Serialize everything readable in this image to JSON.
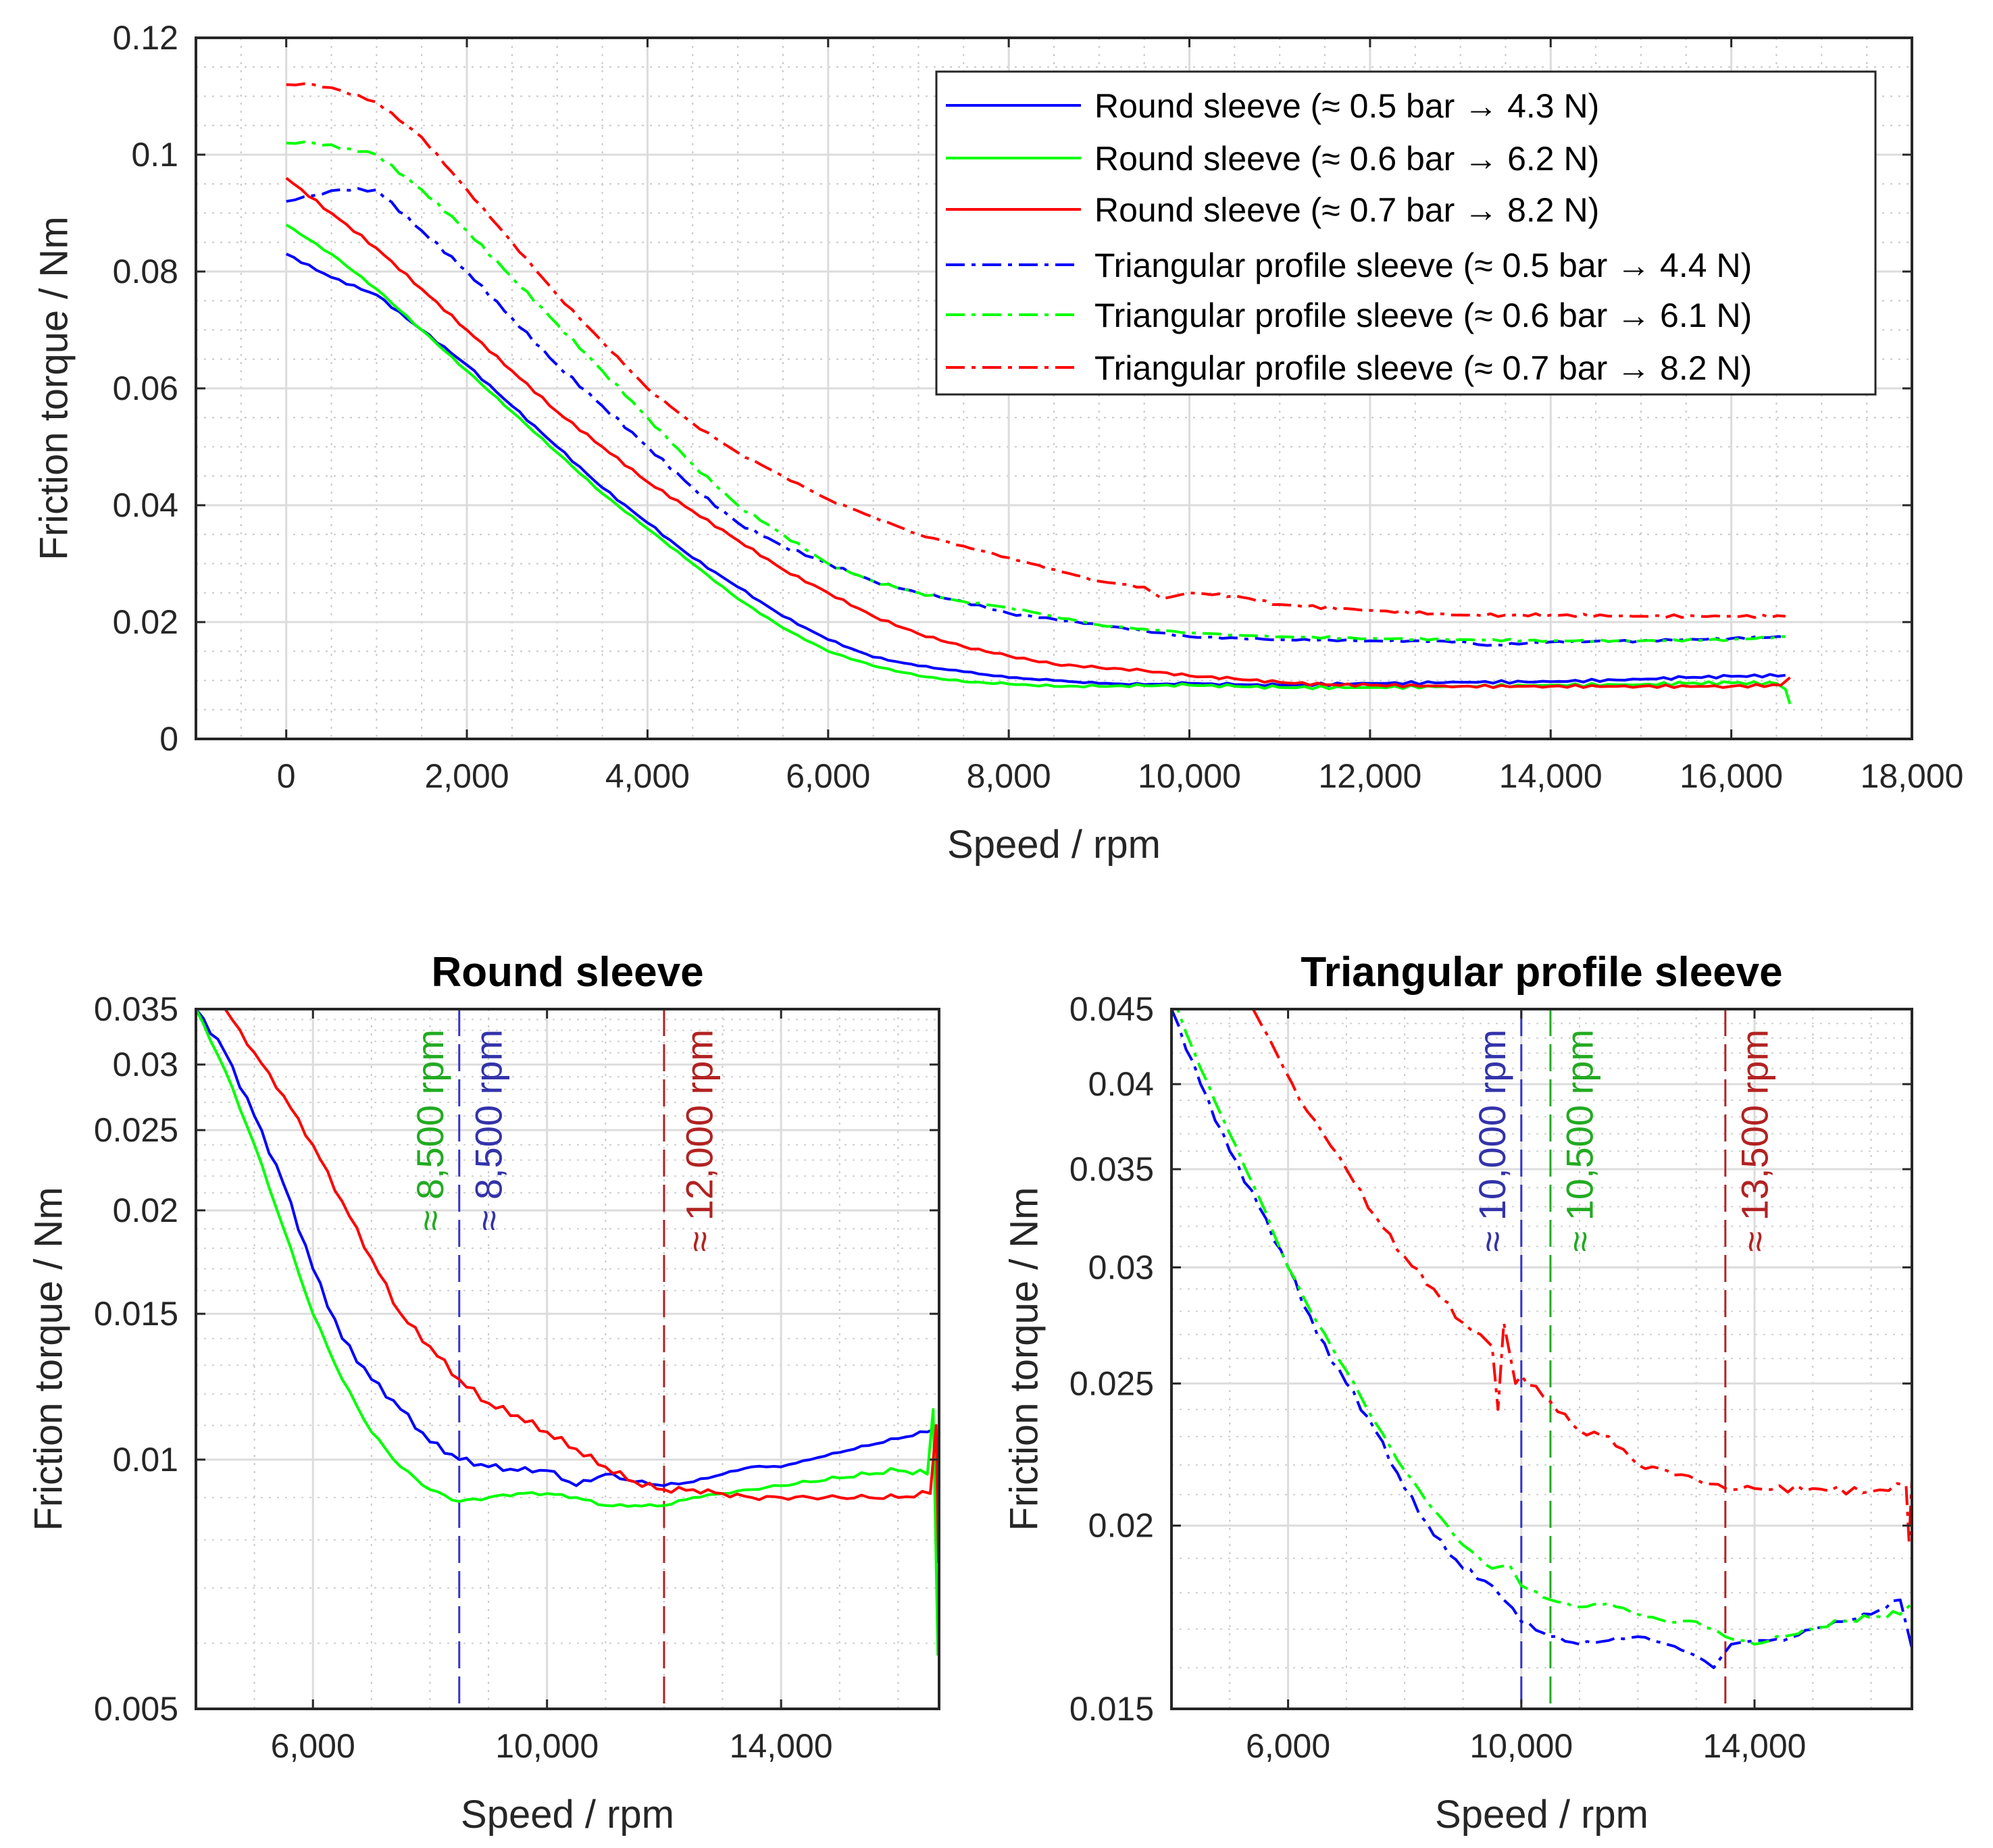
{
  "chart_data": [
    {
      "id": "main",
      "type": "line",
      "title": "",
      "xlabel": "Speed / rpm",
      "ylabel": "Friction torque / Nm",
      "xlim": [
        -1000,
        18000
      ],
      "ylim": [
        0,
        0.12
      ],
      "yscale": "linear",
      "xticks": [
        0,
        2000,
        4000,
        6000,
        8000,
        10000,
        12000,
        14000,
        16000,
        18000
      ],
      "xtick_labels": [
        "0",
        "2,000",
        "4,000",
        "6,000",
        "8,000",
        "10,000",
        "12,000",
        "14,000",
        "16,000",
        "18,000"
      ],
      "yticks": [
        0,
        0.02,
        0.04,
        0.06,
        0.08,
        0.1,
        0.12
      ],
      "ytick_labels": [
        "0",
        "0.02",
        "0.04",
        "0.06",
        "0.08",
        "0.1",
        "0.12"
      ],
      "grid": true,
      "legend_position": "top-right",
      "series": [
        {
          "name": "Round sleeve (≈ 0.5 bar → 4.3 N)",
          "color": "#0000ff",
          "dash": "solid",
          "x": [
            0,
            500,
            1000,
            1500,
            2000,
            2500,
            3000,
            3500,
            4000,
            4500,
            5000,
            5500,
            6000,
            6500,
            7000,
            7500,
            8000,
            8500,
            9000,
            9500,
            10000,
            10500,
            11000,
            12000,
            13000,
            14000,
            15000,
            15500,
            16000,
            16600
          ],
          "y": [
            0.083,
            0.079,
            0.076,
            0.07,
            0.064,
            0.057,
            0.05,
            0.043,
            0.037,
            0.031,
            0.026,
            0.021,
            0.017,
            0.014,
            0.0125,
            0.0115,
            0.0105,
            0.01,
            0.0095,
            0.0093,
            0.0095,
            0.0093,
            0.0092,
            0.0095,
            0.0097,
            0.0098,
            0.0102,
            0.0105,
            0.0107,
            0.0109
          ]
        },
        {
          "name": "Round sleeve (≈ 0.6 bar → 6.2 N)",
          "color": "#00ff00",
          "dash": "solid",
          "x": [
            0,
            500,
            1000,
            1500,
            2000,
            2500,
            3000,
            3500,
            4000,
            4500,
            5000,
            5500,
            6000,
            6500,
            7000,
            7500,
            8000,
            8500,
            9000,
            9500,
            10000,
            10500,
            11000,
            12000,
            13000,
            14000,
            15000,
            15500,
            16000,
            16500,
            16600,
            16650
          ],
          "y": [
            0.088,
            0.083,
            0.077,
            0.07,
            0.063,
            0.056,
            0.049,
            0.042,
            0.036,
            0.03,
            0.024,
            0.019,
            0.015,
            0.0125,
            0.0108,
            0.0098,
            0.0094,
            0.009,
            0.009,
            0.0091,
            0.0092,
            0.009,
            0.0088,
            0.0088,
            0.009,
            0.0092,
            0.0093,
            0.0095,
            0.0096,
            0.0095,
            0.0085,
            0.006
          ]
        },
        {
          "name": "Round sleeve (≈ 0.7 bar → 8.2 N)",
          "color": "#ff0000",
          "dash": "solid",
          "x": [
            0,
            500,
            1000,
            1500,
            2000,
            2500,
            3000,
            3500,
            4000,
            4500,
            5000,
            5500,
            6000,
            6500,
            7000,
            7500,
            8000,
            8500,
            9000,
            9500,
            10000,
            10500,
            11000,
            11500,
            12000,
            13000,
            14000,
            15000,
            16000,
            16550,
            16650
          ],
          "y": [
            0.096,
            0.09,
            0.084,
            0.077,
            0.07,
            0.063,
            0.056,
            0.05,
            0.044,
            0.039,
            0.034,
            0.029,
            0.025,
            0.021,
            0.018,
            0.0158,
            0.0142,
            0.0128,
            0.0122,
            0.0117,
            0.0108,
            0.0103,
            0.0097,
            0.0093,
            0.0092,
            0.009,
            0.009,
            0.009,
            0.009,
            0.0092,
            0.0105
          ]
        },
        {
          "name": "Triangular profile sleeve (≈ 0.5 bar → 4.4 N)",
          "color": "#0000ff",
          "dash": "dashdot",
          "x": [
            0,
            300,
            600,
            1000,
            1500,
            2000,
            2500,
            3000,
            3500,
            4000,
            4500,
            5000,
            5500,
            6000,
            6500,
            7000,
            7500,
            8000,
            8500,
            9000,
            9500,
            10000,
            11000,
            12000,
            13000,
            13300,
            14000,
            15000,
            16000,
            16600
          ],
          "y": [
            0.092,
            0.093,
            0.094,
            0.094,
            0.087,
            0.08,
            0.072,
            0.064,
            0.057,
            0.05,
            0.043,
            0.037,
            0.033,
            0.03,
            0.027,
            0.025,
            0.0235,
            0.0215,
            0.0205,
            0.0195,
            0.0185,
            0.0175,
            0.017,
            0.0168,
            0.0167,
            0.016,
            0.0166,
            0.0168,
            0.0172,
            0.0175
          ]
        },
        {
          "name": "Triangular profile sleeve (≈ 0.6 bar → 6.1 N)",
          "color": "#00ff00",
          "dash": "dashdot",
          "x": [
            0,
            300,
            700,
            1000,
            1500,
            2000,
            2500,
            3000,
            3500,
            4000,
            4500,
            5000,
            5500,
            6000,
            6500,
            7000,
            7500,
            8000,
            8500,
            9000,
            9500,
            10000,
            10500,
            11000,
            12000,
            13000,
            14000,
            15000,
            16000,
            16600
          ],
          "y": [
            0.102,
            0.102,
            0.101,
            0.1,
            0.094,
            0.087,
            0.079,
            0.071,
            0.063,
            0.055,
            0.047,
            0.04,
            0.035,
            0.03,
            0.027,
            0.025,
            0.0235,
            0.0225,
            0.021,
            0.0195,
            0.0188,
            0.0182,
            0.0178,
            0.0175,
            0.0172,
            0.017,
            0.0168,
            0.0168,
            0.017,
            0.0175
          ]
        },
        {
          "name": "Triangular profile sleeve (≈ 0.7 bar → 8.2 N)",
          "color": "#ff0000",
          "dash": "dashdot",
          "x": [
            0,
            300,
            600,
            1000,
            1500,
            2000,
            2500,
            3000,
            3500,
            4000,
            4500,
            5000,
            5500,
            6000,
            6500,
            7000,
            7500,
            8000,
            8500,
            9000,
            9500,
            9700,
            10000,
            10500,
            11000,
            12000,
            13000,
            13500,
            14000,
            15000,
            16000,
            16600
          ],
          "y": [
            0.112,
            0.112,
            0.111,
            0.109,
            0.103,
            0.094,
            0.085,
            0.076,
            0.068,
            0.06,
            0.054,
            0.049,
            0.045,
            0.041,
            0.038,
            0.035,
            0.033,
            0.031,
            0.029,
            0.027,
            0.026,
            0.024,
            0.025,
            0.0245,
            0.023,
            0.022,
            0.0212,
            0.0212,
            0.0212,
            0.021,
            0.021,
            0.021
          ]
        }
      ]
    },
    {
      "id": "round",
      "type": "line",
      "title": "Round sleeve",
      "xlabel": "Speed / rpm",
      "ylabel": "Friction torque / Nm",
      "xlim": [
        4000,
        16700
      ],
      "ylim": [
        0.005,
        0.035
      ],
      "yscale": "log",
      "xticks": [
        6000,
        10000,
        14000
      ],
      "xtick_labels": [
        "6,000",
        "10,000",
        "14,000"
      ],
      "yticks": [
        0.005,
        0.01,
        0.015,
        0.02,
        0.025,
        0.03,
        0.035
      ],
      "ytick_labels": [
        "0.005",
        "0.01",
        "0.015",
        "0.02",
        "0.025",
        "0.03",
        "0.035"
      ],
      "grid": true,
      "vlines": [
        {
          "x": 8500,
          "color": "#3333cc"
        },
        {
          "x": 12000,
          "color": "#b22222"
        }
      ],
      "annotations": [
        {
          "text": "≈ 8,500 rpm",
          "x": 8000,
          "color": "#22aa22"
        },
        {
          "text": "≈ 8,500 rpm",
          "x": 9000,
          "color": "#3333aa"
        },
        {
          "text": "≈ 12,000 rpm",
          "x": 12600,
          "color": "#b22222"
        }
      ],
      "series": [
        {
          "name": "blue solid",
          "color": "#0000ff",
          "dash": "solid",
          "x": [
            4000,
            4500,
            5000,
            5500,
            6000,
            6500,
            7000,
            7500,
            8000,
            8500,
            9000,
            9500,
            10000,
            10500,
            11000,
            11500,
            12000,
            12500,
            13000,
            13500,
            14000,
            14500,
            15000,
            15500,
            16000,
            16500,
            16650
          ],
          "y": [
            0.035,
            0.031,
            0.026,
            0.0215,
            0.017,
            0.014,
            0.0125,
            0.0115,
            0.0105,
            0.01,
            0.0098,
            0.0097,
            0.0097,
            0.0093,
            0.0096,
            0.0094,
            0.0093,
            0.0094,
            0.0096,
            0.0098,
            0.0098,
            0.01,
            0.0102,
            0.0104,
            0.0106,
            0.0108,
            0.0109
          ]
        },
        {
          "name": "green solid",
          "color": "#00ff00",
          "dash": "solid",
          "x": [
            4000,
            4500,
            5000,
            5500,
            6000,
            6500,
            7000,
            7500,
            8000,
            8500,
            9000,
            9500,
            10000,
            10500,
            11000,
            11500,
            12000,
            12500,
            13000,
            13500,
            14000,
            14500,
            15000,
            15500,
            16000,
            16500,
            16600,
            16680
          ],
          "y": [
            0.035,
            0.0295,
            0.024,
            0.019,
            0.015,
            0.0125,
            0.0108,
            0.0098,
            0.0092,
            0.0089,
            0.009,
            0.0091,
            0.0091,
            0.009,
            0.0088,
            0.0088,
            0.0088,
            0.009,
            0.0091,
            0.0092,
            0.0093,
            0.0094,
            0.0095,
            0.0096,
            0.0097,
            0.0096,
            0.0115,
            0.0058
          ]
        },
        {
          "name": "red solid",
          "color": "#ff0000",
          "dash": "solid",
          "x": [
            4500,
            5000,
            5500,
            6000,
            6500,
            7000,
            7500,
            8000,
            8500,
            9000,
            9500,
            10000,
            10500,
            11000,
            11500,
            12000,
            12500,
            13000,
            13500,
            14000,
            14500,
            15000,
            15500,
            16000,
            16550,
            16650,
            16690
          ],
          "y": [
            0.035,
            0.031,
            0.0275,
            0.024,
            0.0205,
            0.0175,
            0.015,
            0.0137,
            0.0125,
            0.0117,
            0.0113,
            0.0108,
            0.0103,
            0.0098,
            0.0094,
            0.0092,
            0.0092,
            0.0091,
            0.009,
            0.009,
            0.009,
            0.009,
            0.009,
            0.009,
            0.0091,
            0.011,
            0.0075
          ]
        }
      ]
    },
    {
      "id": "triangular",
      "type": "line",
      "title": "Triangular profile sleeve",
      "xlabel": "Speed / rpm",
      "ylabel": "Friction torque / Nm",
      "xlim": [
        4000,
        16700
      ],
      "ylim": [
        0.015,
        0.045
      ],
      "yscale": "log",
      "xticks": [
        6000,
        10000,
        14000
      ],
      "xtick_labels": [
        "6,000",
        "10,000",
        "14,000"
      ],
      "yticks": [
        0.015,
        0.02,
        0.025,
        0.03,
        0.035,
        0.04,
        0.045
      ],
      "ytick_labels": [
        "0.015",
        "0.02",
        "0.025",
        "0.03",
        "0.035",
        "0.04",
        "0.045"
      ],
      "grid": true,
      "vlines": [
        {
          "x": 10000,
          "color": "#3333cc"
        },
        {
          "x": 10500,
          "color": "#22aa22"
        },
        {
          "x": 13500,
          "color": "#b22222"
        }
      ],
      "annotations": [
        {
          "text": "≈ 10,000 rpm",
          "x": 9500,
          "color": "#3333aa"
        },
        {
          "text": "≈ 10,500 rpm",
          "x": 11000,
          "color": "#22aa22"
        },
        {
          "text": "≈ 13,500 rpm",
          "x": 14000,
          "color": "#b22222"
        }
      ],
      "series": [
        {
          "name": "blue dashdot",
          "color": "#0000ff",
          "dash": "dashdot",
          "x": [
            4000,
            4500,
            5000,
            5500,
            6000,
            6500,
            7000,
            7500,
            8000,
            8500,
            9000,
            9500,
            9700,
            10000,
            10500,
            11000,
            11500,
            12000,
            12500,
            13000,
            13300,
            13600,
            14000,
            14500,
            15000,
            15500,
            16000,
            16500,
            16700
          ],
          "y": [
            0.045,
            0.04,
            0.036,
            0.033,
            0.03,
            0.027,
            0.025,
            0.0232,
            0.0212,
            0.0197,
            0.0187,
            0.0182,
            0.0178,
            0.0172,
            0.0168,
            0.0166,
            0.0167,
            0.0168,
            0.0166,
            0.0163,
            0.016,
            0.0166,
            0.0167,
            0.0167,
            0.017,
            0.0172,
            0.0174,
            0.0178,
            0.0165
          ]
        },
        {
          "name": "green dashdot",
          "color": "#00ff00",
          "dash": "dashdot",
          "x": [
            4000,
            4500,
            5000,
            5500,
            6000,
            6500,
            7000,
            7500,
            8000,
            8500,
            9000,
            9500,
            9800,
            10000,
            10500,
            11000,
            11500,
            12000,
            12500,
            13000,
            13500,
            14000,
            14500,
            15000,
            15500,
            16000,
            16500,
            16700
          ],
          "y": [
            0.046,
            0.041,
            0.037,
            0.0335,
            0.03,
            0.0275,
            0.0255,
            0.0235,
            0.0218,
            0.0205,
            0.0194,
            0.0187,
            0.0188,
            0.0182,
            0.0178,
            0.0176,
            0.0177,
            0.0174,
            0.0172,
            0.0172,
            0.0168,
            0.0166,
            0.0168,
            0.017,
            0.0172,
            0.0173,
            0.0174,
            0.0177
          ]
        },
        {
          "name": "red dashdot",
          "color": "#ff0000",
          "dash": "dashdot",
          "x": [
            5400,
            5800,
            6200,
            6600,
            7000,
            7500,
            8000,
            8500,
            9000,
            9300,
            9500,
            9600,
            9700,
            9900,
            10000,
            10500,
            11000,
            11500,
            12000,
            12500,
            13000,
            13500,
            14000,
            15000,
            16000,
            16600,
            16650,
            16700
          ],
          "y": [
            0.045,
            0.042,
            0.039,
            0.037,
            0.035,
            0.0325,
            0.0305,
            0.029,
            0.0275,
            0.027,
            0.0265,
            0.024,
            0.0275,
            0.025,
            0.0253,
            0.0243,
            0.0232,
            0.023,
            0.022,
            0.0218,
            0.0215,
            0.0212,
            0.0212,
            0.0212,
            0.0211,
            0.0213,
            0.0195,
            0.0215
          ]
        }
      ]
    }
  ]
}
